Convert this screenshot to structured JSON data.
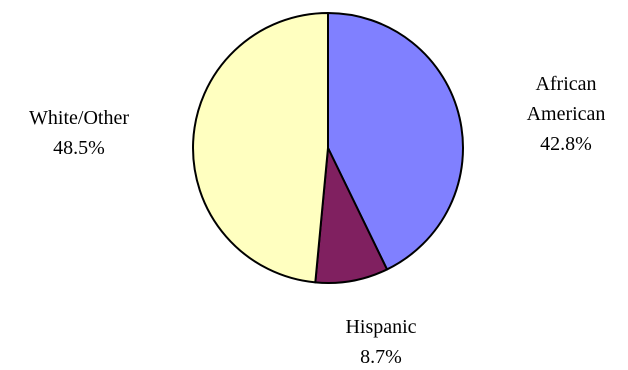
{
  "chart_data": {
    "type": "pie",
    "title": "",
    "slices": [
      {
        "label_lines": [
          "African",
          "American"
        ],
        "value_label": "42.8%",
        "value": 42.8,
        "color": "#8080ff"
      },
      {
        "label_lines": [
          "Hispanic"
        ],
        "value_label": "8.7%",
        "value": 8.7,
        "color": "#802060"
      },
      {
        "label_lines": [
          "White/Other"
        ],
        "value_label": "48.5%",
        "value": 48.5,
        "color": "#ffffc0"
      }
    ],
    "start_angle": "12 o'clock",
    "direction": "clockwise",
    "outline_color": "#000000",
    "legend": "none"
  }
}
